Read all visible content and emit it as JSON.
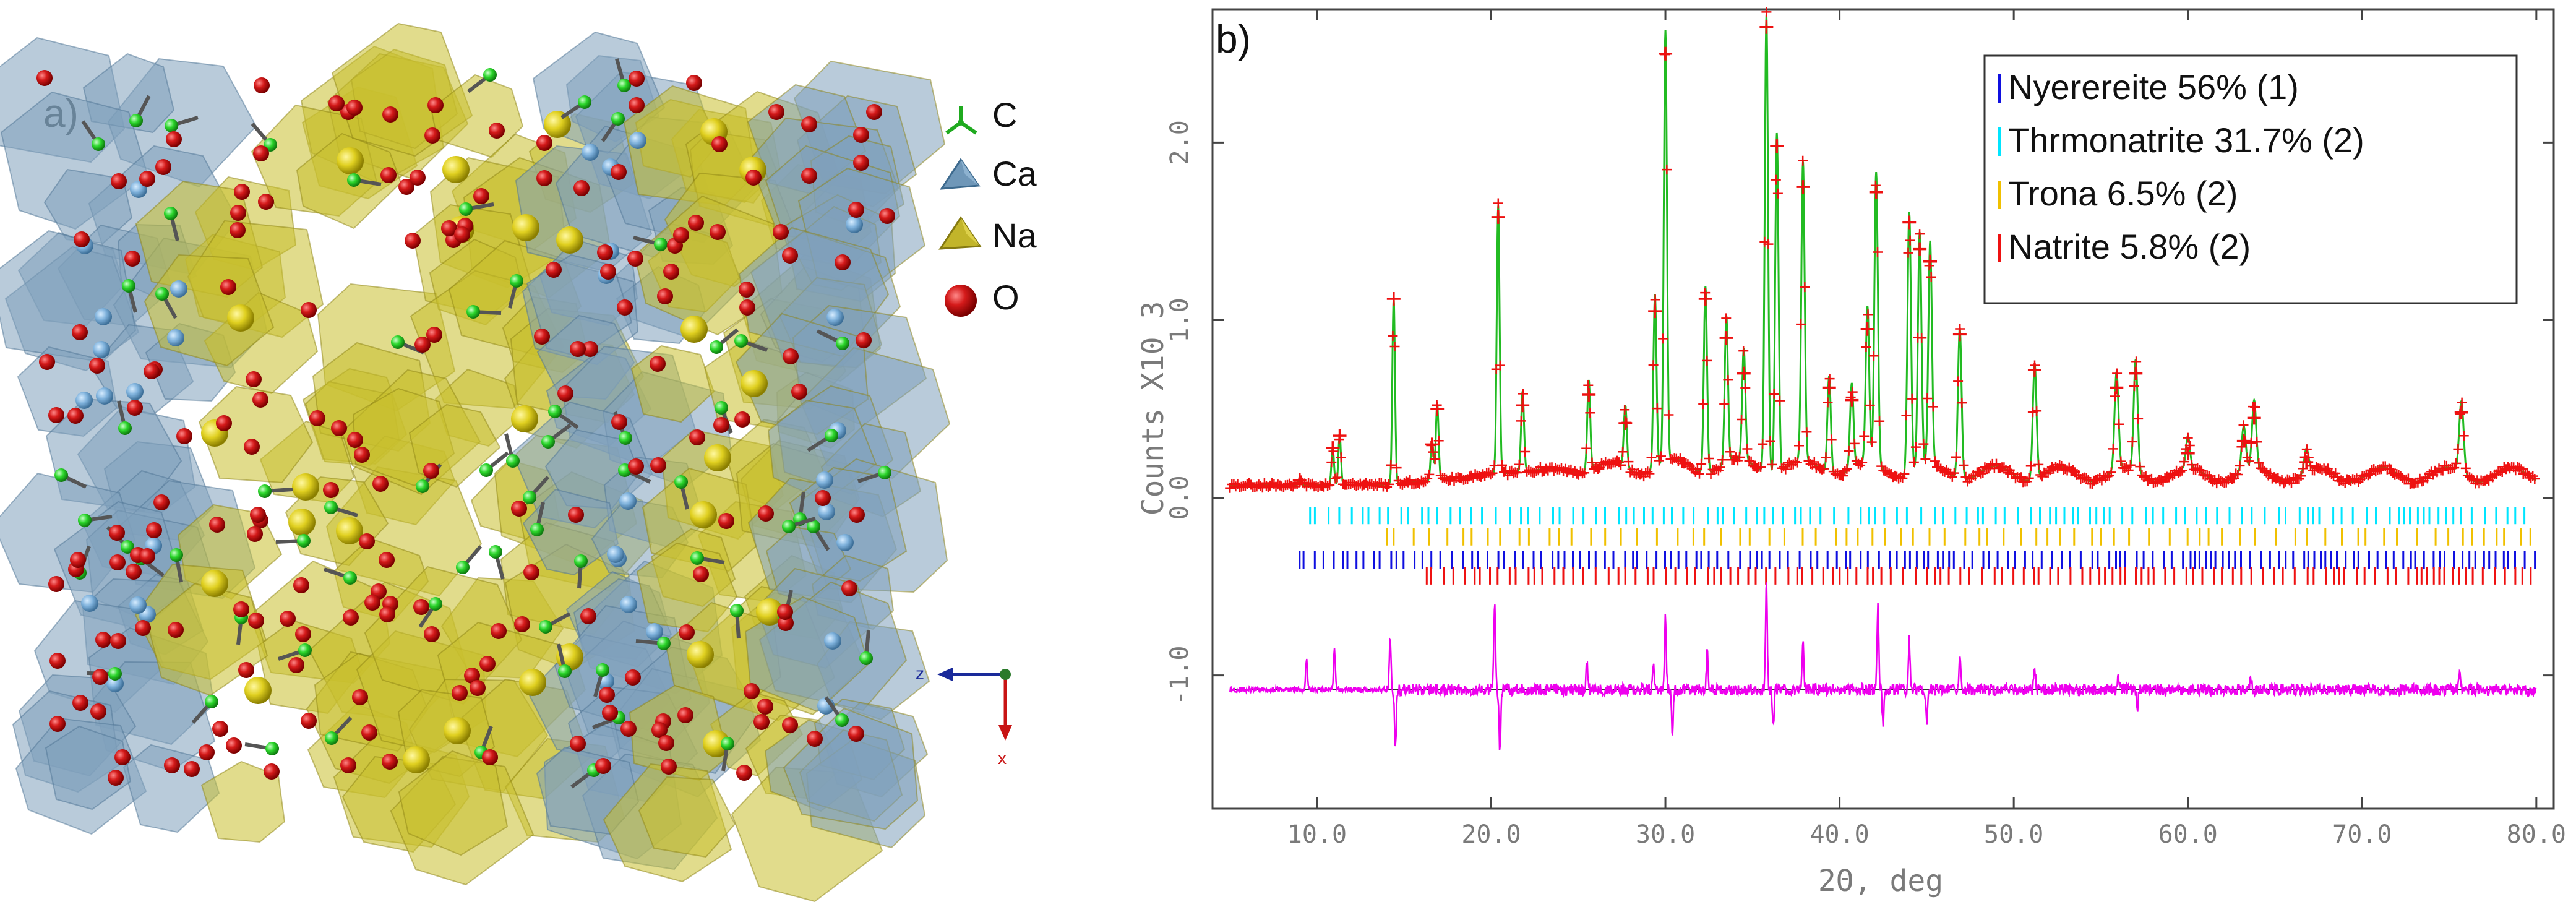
{
  "panel_a": {
    "label": "a)",
    "legend": [
      {
        "symbol": "carbon-icon",
        "text": "C",
        "color": "#22cc22"
      },
      {
        "symbol": "calcium-polyhedron-icon",
        "text": "Ca",
        "color": "#6f97b8"
      },
      {
        "symbol": "sodium-polyhedron-icon",
        "text": "Na",
        "color": "#c2b52a"
      },
      {
        "symbol": "oxygen-sphere-icon",
        "text": "O",
        "color": "#d0141b"
      }
    ],
    "axes": {
      "z": "z",
      "x": "x",
      "z_color": "#1a2a9a",
      "x_color": "#c81414",
      "y_color": "#2a7a2a"
    }
  },
  "panel_b": {
    "label": "b)"
  },
  "chart_data": {
    "type": "scatter",
    "title": "",
    "xlabel": "2Θ, deg",
    "ylabel": "Counts X10 3",
    "xlim": [
      4.0,
      81.0
    ],
    "ylim": [
      -1.75,
      2.75
    ],
    "xticks": [
      "10.0",
      "20.0",
      "30.0",
      "40.0",
      "50.0",
      "60.0",
      "70.0",
      "80.0"
    ],
    "yticks": [
      "-1.0",
      "0.0",
      "1.0",
      "2.0"
    ],
    "legend_position": "top-right",
    "legend": [
      {
        "text": "Nyerereite 56% (1)",
        "color": "#1010e0"
      },
      {
        "text": "Thrmonatrite 31.7% (2)",
        "color": "#00e5ff"
      },
      {
        "text": "Trona 6.5% (2)",
        "color": "#f0c000"
      },
      {
        "text": "Natrite 5.8% (2)",
        "color": "#ee1111"
      }
    ],
    "colors": {
      "observed": "#ee1111",
      "calculated": "#22bb22",
      "difference": "#ee00ee",
      "zero_line": "#333333"
    },
    "background": 0.07,
    "peaks": [
      {
        "x": 9.0,
        "y": 0.1
      },
      {
        "x": 10.9,
        "y": 0.28
      },
      {
        "x": 11.3,
        "y": 0.35
      },
      {
        "x": 14.4,
        "y": 1.12
      },
      {
        "x": 16.6,
        "y": 0.3
      },
      {
        "x": 16.9,
        "y": 0.5
      },
      {
        "x": 20.4,
        "y": 1.58
      },
      {
        "x": 21.8,
        "y": 0.52
      },
      {
        "x": 25.6,
        "y": 0.58
      },
      {
        "x": 27.7,
        "y": 0.42
      },
      {
        "x": 29.4,
        "y": 1.05
      },
      {
        "x": 30.0,
        "y": 2.5
      },
      {
        "x": 32.3,
        "y": 1.12
      },
      {
        "x": 33.5,
        "y": 0.9
      },
      {
        "x": 34.5,
        "y": 0.7
      },
      {
        "x": 35.8,
        "y": 2.65
      },
      {
        "x": 36.4,
        "y": 1.98
      },
      {
        "x": 37.9,
        "y": 1.75
      },
      {
        "x": 39.4,
        "y": 0.62
      },
      {
        "x": 40.7,
        "y": 0.55
      },
      {
        "x": 41.6,
        "y": 0.95
      },
      {
        "x": 42.1,
        "y": 1.72
      },
      {
        "x": 44.0,
        "y": 1.55
      },
      {
        "x": 44.6,
        "y": 1.4
      },
      {
        "x": 45.2,
        "y": 1.33
      },
      {
        "x": 46.9,
        "y": 0.92
      },
      {
        "x": 51.2,
        "y": 0.72
      },
      {
        "x": 55.9,
        "y": 0.62
      },
      {
        "x": 57.0,
        "y": 0.7
      },
      {
        "x": 60.0,
        "y": 0.25
      },
      {
        "x": 63.2,
        "y": 0.32
      },
      {
        "x": 63.8,
        "y": 0.45
      },
      {
        "x": 66.8,
        "y": 0.2
      },
      {
        "x": 75.7,
        "y": 0.48
      }
    ],
    "reflection_rows": [
      {
        "name": "Thrmonatrite",
        "color": "#00e5ff",
        "y": -0.1,
        "from": 9.6,
        "step": 0.55,
        "to": 80.0
      },
      {
        "name": "Trona",
        "color": "#f0c000",
        "y": -0.22,
        "from": 14.0,
        "step": 0.8,
        "to": 80.0
      },
      {
        "name": "Nyerereite",
        "color": "#1010e0",
        "y": -0.35,
        "from": 9.0,
        "step": 0.45,
        "to": 80.0
      },
      {
        "name": "Natrite",
        "color": "#ee1111",
        "y": -0.44,
        "from": 16.3,
        "step": 0.5,
        "to": 80.0
      }
    ],
    "difference_offset": -1.08,
    "difference_spikes": [
      {
        "x": 9.4,
        "y": 0.18
      },
      {
        "x": 11.0,
        "y": 0.22
      },
      {
        "x": 14.2,
        "y": 0.3
      },
      {
        "x": 14.5,
        "y": -0.32
      },
      {
        "x": 20.2,
        "y": 0.48
      },
      {
        "x": 20.5,
        "y": -0.35
      },
      {
        "x": 25.5,
        "y": 0.15
      },
      {
        "x": 29.3,
        "y": 0.15
      },
      {
        "x": 30.0,
        "y": 0.4
      },
      {
        "x": 30.4,
        "y": -0.25
      },
      {
        "x": 32.4,
        "y": 0.2
      },
      {
        "x": 35.8,
        "y": 0.6
      },
      {
        "x": 36.2,
        "y": -0.22
      },
      {
        "x": 37.9,
        "y": 0.25
      },
      {
        "x": 42.2,
        "y": 0.48
      },
      {
        "x": 42.5,
        "y": -0.2
      },
      {
        "x": 44.0,
        "y": 0.28
      },
      {
        "x": 45.0,
        "y": -0.18
      },
      {
        "x": 46.9,
        "y": 0.2
      },
      {
        "x": 51.2,
        "y": 0.12
      },
      {
        "x": 56.0,
        "y": 0.1
      },
      {
        "x": 57.1,
        "y": -0.1
      },
      {
        "x": 63.6,
        "y": 0.08
      },
      {
        "x": 75.6,
        "y": 0.1
      }
    ]
  }
}
